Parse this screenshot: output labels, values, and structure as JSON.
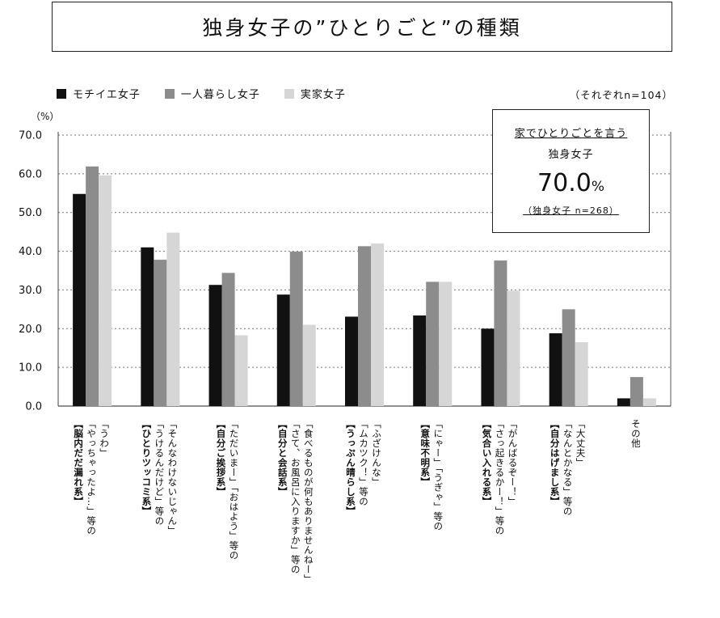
{
  "header": {
    "title": "独身女子の”ひとりごと”の種類"
  },
  "legend": [
    {
      "label": "モチイエ女子",
      "color": "#111111"
    },
    {
      "label": "一人暮らし女子",
      "color": "#8c8c8c"
    },
    {
      "label": "実家女子",
      "color": "#d6d6d6"
    }
  ],
  "sample_note": "（それぞれn=104）",
  "callout": {
    "line1": "家でひとりごとを言う",
    "line2": "独身女子",
    "value": "70.0",
    "unit": "%",
    "note": "（独身女子 n=268）"
  },
  "chart_data": {
    "type": "bar",
    "ylabel": "（%）",
    "ylim": [
      0,
      70
    ],
    "yticks": [
      "70.0",
      "60.0",
      "50.0",
      "40.0",
      "30.0",
      "20.0",
      "10.0",
      "0.0"
    ],
    "grid": true,
    "legend_position": "top-left",
    "categories": [
      "「うわ」「やっちゃったよ…」等の【脳内だだ漏れ系】",
      "「そんなわけないじゃん」「うけるんだけど」等の【ひとりツッコミ系】",
      "「ただいまー」「おはよう」等の【自分ご挨拶系】",
      "「食べるものが何もありませんねー」「さて、お風呂に入りますか」等の【自分と会話系】",
      "「ふざけんな」「ムカツク！」等の【うっぷん晴らし系】",
      "「にゃー」「うぎゃ」等の【意味不明系】",
      "「がんばるぞー！」「さっ起きるかー！」等の【気合い入れる系】",
      "「大丈夫」「なんとかなる」等の【自分はげまし系】",
      "その他"
    ],
    "category_lines": [
      [
        "「うわ」",
        "「やっちゃったよ…」等の",
        "【脳内だだ漏れ系】"
      ],
      [
        "「そんなわけないじゃん」",
        "「うけるんだけど」等の",
        "【ひとりツッコミ系】"
      ],
      [
        "「ただいまー」「おはよう」等の",
        "【自分ご挨拶系】"
      ],
      [
        "「食べるものが何もありませんねー」",
        "「さて、お風呂に入りますか」等の",
        "【自分と会話系】"
      ],
      [
        "「ふざけんな」",
        "「ムカツク！」等の",
        "【うっぷん晴らし系】"
      ],
      [
        "「にゃー」「うぎゃ」等の",
        "【意味不明系】"
      ],
      [
        "「がんばるぞー！」",
        "「さっ起きるかー！」等の",
        "【気合い入れる系】"
      ],
      [
        "「大丈夫」",
        "「なんとかなる」等の",
        "【自分はげまし系】"
      ],
      [
        "その他"
      ]
    ],
    "series": [
      {
        "name": "モチイエ女子",
        "color": "#111111",
        "values": [
          54.8,
          41.0,
          31.3,
          28.8,
          23.1,
          23.4,
          20.0,
          18.8,
          2.0
        ]
      },
      {
        "name": "一人暮らし女子",
        "color": "#8c8c8c",
        "values": [
          61.9,
          37.8,
          34.4,
          39.9,
          41.3,
          32.1,
          37.6,
          25.0,
          7.5
        ]
      },
      {
        "name": "実家女子",
        "color": "#d6d6d6",
        "values": [
          59.6,
          44.8,
          18.3,
          21.0,
          42.0,
          32.1,
          29.8,
          16.5,
          2.0
        ]
      }
    ]
  }
}
